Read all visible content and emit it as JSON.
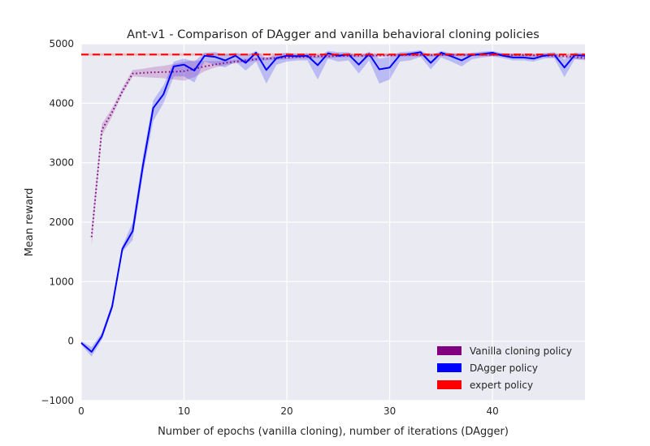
{
  "chart_data": {
    "type": "line",
    "title": "Ant-v1 - Comparison of DAgger and vanilla behavioral cloning policies",
    "xlabel": "Number of epochs (vanilla cloning), number of iterations (DAgger)",
    "ylabel": "Mean reward",
    "xlim": [
      0,
      49
    ],
    "ylim": [
      -1000,
      5000
    ],
    "xticks": [
      0,
      10,
      20,
      30,
      40
    ],
    "xtick_labels": [
      "0",
      "10",
      "20",
      "30",
      "40"
    ],
    "yticks": [
      -1000,
      0,
      1000,
      2000,
      3000,
      4000,
      5000
    ],
    "ytick_labels": [
      "−1000",
      "0",
      "1000",
      "2000",
      "3000",
      "4000",
      "5000"
    ],
    "grid": true,
    "legend_position": "bottom-right",
    "colors": {
      "background": "#eaeaf2",
      "grid": "#ffffff",
      "vanilla": "#800080",
      "dagger": "#0000ff",
      "expert": "#ff0000"
    },
    "series": [
      {
        "name": "Vanilla cloning policy",
        "style": "dotted",
        "color": "#800080",
        "x": [
          1,
          2,
          3,
          4,
          5,
          6,
          7,
          8,
          9,
          10,
          11,
          12,
          13,
          14,
          15,
          16,
          17,
          18,
          19,
          20,
          21,
          22,
          23,
          24,
          25,
          26,
          27,
          28,
          29,
          30,
          31,
          32,
          33,
          34,
          35,
          36,
          37,
          38,
          39,
          40,
          41,
          42,
          43,
          44,
          45,
          46,
          47,
          48,
          49
        ],
        "y": [
          1750,
          3550,
          3850,
          4200,
          4500,
          4510,
          4520,
          4525,
          4530,
          4540,
          4580,
          4620,
          4650,
          4680,
          4700,
          4720,
          4740,
          4750,
          4760,
          4770,
          4780,
          4780,
          4790,
          4790,
          4795,
          4800,
          4800,
          4800,
          4805,
          4805,
          4810,
          4810,
          4810,
          4810,
          4815,
          4815,
          4815,
          4815,
          4815,
          4815,
          4815,
          4810,
          4810,
          4805,
          4800,
          4800,
          4790,
          4780,
          4760
        ],
        "band_low": [
          1600,
          3450,
          3780,
          4150,
          4450,
          4440,
          4430,
          4420,
          4400,
          4380,
          4440,
          4540,
          4600,
          4640,
          4670,
          4690,
          4710,
          4720,
          4730,
          4740,
          4750,
          4750,
          4760,
          4760,
          4770,
          4775,
          4775,
          4775,
          4780,
          4780,
          4785,
          4785,
          4785,
          4785,
          4790,
          4790,
          4790,
          4790,
          4790,
          4790,
          4790,
          4785,
          4785,
          4780,
          4775,
          4770,
          4760,
          4745,
          4720
        ],
        "band_high": [
          1900,
          3650,
          3920,
          4260,
          4560,
          4580,
          4610,
          4630,
          4660,
          4700,
          4720,
          4710,
          4710,
          4720,
          4730,
          4750,
          4770,
          4780,
          4790,
          4800,
          4810,
          4810,
          4820,
          4820,
          4820,
          4825,
          4825,
          4825,
          4830,
          4830,
          4835,
          4835,
          4835,
          4835,
          4840,
          4840,
          4840,
          4840,
          4840,
          4840,
          4840,
          4835,
          4835,
          4830,
          4825,
          4830,
          4820,
          4815,
          4800
        ]
      },
      {
        "name": "DAgger policy",
        "style": "solid",
        "color": "#0000ff",
        "x": [
          0,
          1,
          2,
          3,
          4,
          5,
          6,
          7,
          8,
          9,
          10,
          11,
          12,
          13,
          14,
          15,
          16,
          17,
          18,
          19,
          20,
          21,
          22,
          23,
          24,
          25,
          26,
          27,
          28,
          29,
          30,
          31,
          32,
          33,
          34,
          35,
          36,
          37,
          38,
          39,
          40,
          41,
          42,
          43,
          44,
          45,
          46,
          47,
          48,
          49
        ],
        "y": [
          -30,
          -180,
          80,
          580,
          1550,
          1850,
          2950,
          3920,
          4150,
          4620,
          4650,
          4550,
          4800,
          4780,
          4720,
          4800,
          4680,
          4850,
          4560,
          4760,
          4800,
          4790,
          4800,
          4640,
          4840,
          4800,
          4820,
          4650,
          4830,
          4570,
          4600,
          4810,
          4830,
          4860,
          4680,
          4850,
          4790,
          4720,
          4810,
          4830,
          4850,
          4800,
          4770,
          4770,
          4750,
          4800,
          4820,
          4600,
          4810,
          4800
        ],
        "band_low": [
          -60,
          -260,
          20,
          520,
          1500,
          1700,
          2800,
          3700,
          4000,
          4450,
          4450,
          4350,
          4700,
          4650,
          4600,
          4700,
          4550,
          4700,
          4330,
          4650,
          4700,
          4720,
          4720,
          4400,
          4750,
          4700,
          4720,
          4500,
          4720,
          4330,
          4400,
          4700,
          4720,
          4780,
          4570,
          4770,
          4700,
          4620,
          4740,
          4770,
          4790,
          4760,
          4720,
          4720,
          4700,
          4750,
          4760,
          4440,
          4740,
          4740
        ],
        "band_high": [
          0,
          -100,
          140,
          640,
          1600,
          2000,
          3100,
          4050,
          4300,
          4700,
          4750,
          4700,
          4850,
          4860,
          4820,
          4850,
          4800,
          4880,
          4750,
          4830,
          4850,
          4830,
          4840,
          4780,
          4880,
          4860,
          4860,
          4780,
          4870,
          4750,
          4780,
          4860,
          4870,
          4890,
          4800,
          4880,
          4840,
          4800,
          4850,
          4870,
          4880,
          4840,
          4810,
          4810,
          4800,
          4840,
          4860,
          4740,
          4850,
          4840
        ]
      },
      {
        "name": "expert policy",
        "style": "dashed",
        "color": "#ff0000",
        "x": [
          0,
          49
        ],
        "y": [
          4820,
          4820
        ],
        "band_low": [
          4800,
          4800
        ],
        "band_high": [
          4840,
          4840
        ]
      }
    ]
  }
}
